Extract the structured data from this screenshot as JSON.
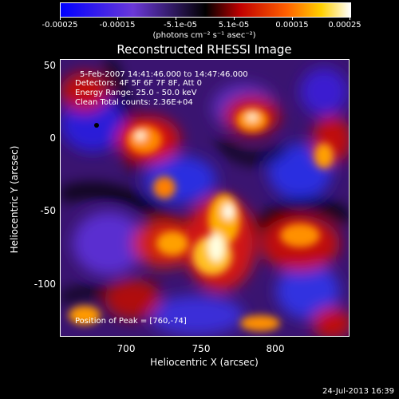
{
  "colorbar": {
    "ticks": [
      "-0.00025",
      "-0.00015",
      "-5.1e-05",
      "5.1e-05",
      "0.00015",
      "0.00025"
    ],
    "units": "(photons cm⁻² s⁻¹ asec⁻²)",
    "colors": [
      "#1010ff",
      "#7a2fd0",
      "#000000",
      "#d01010",
      "#ff9a00",
      "#ffffff"
    ]
  },
  "title": "Reconstructed RHESSI Image",
  "annotations": {
    "time": "5-Feb-2007 14:41:46.000 to 14:47:46.000",
    "detectors": "Detectors: 4F 5F 6F 7F 8F, Att 0",
    "energy": "Energy Range: 25.0 - 50.0 keV",
    "clean": "Clean     Total counts: 2.36E+04",
    "peak": "Position of Peak = [760,-74]"
  },
  "axes": {
    "xlabel": "Heliocentric X (arcsec)",
    "ylabel": "Heliocentric Y (arcsec)",
    "xticks": [
      "700",
      "750",
      "800"
    ],
    "yticks": [
      "50",
      "0",
      "-50",
      "-100"
    ],
    "xlim": [
      651,
      841
    ],
    "ylim": [
      -138,
      53
    ]
  },
  "footer": {
    "timestamp": "24-Jul-2013 16:39"
  }
}
